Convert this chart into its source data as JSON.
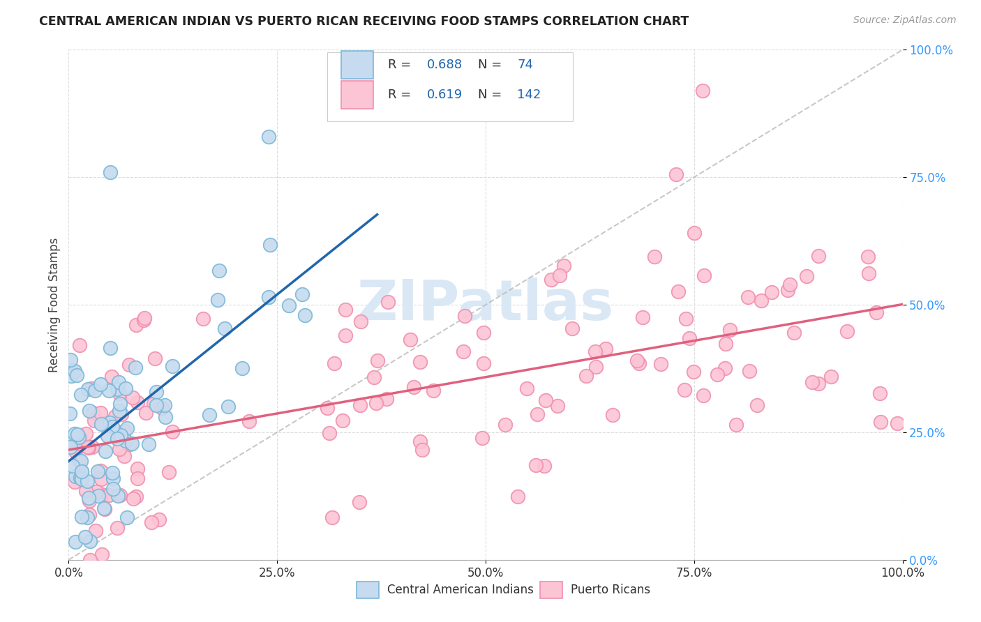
{
  "title": "CENTRAL AMERICAN INDIAN VS PUERTO RICAN RECEIVING FOOD STAMPS CORRELATION CHART",
  "source": "Source: ZipAtlas.com",
  "ylabel": "Receiving Food Stamps",
  "legend_label1": "Central American Indians",
  "legend_label2": "Puerto Ricans",
  "R1": "0.688",
  "N1": "74",
  "R2": "0.619",
  "N2": "142",
  "color1_edge": "#7ab8d9",
  "color1_fill": "#c6dbef",
  "color2_edge": "#f090b0",
  "color2_fill": "#fcc5d5",
  "line1_color": "#2166ac",
  "line2_color": "#e0607e",
  "diag_color": "#bbbbbb",
  "tick_color": "#3399ff",
  "watermark_color": "#dae8f5",
  "background": "#ffffff",
  "grid_color": "#dddddd",
  "title_color": "#222222",
  "source_color": "#999999"
}
